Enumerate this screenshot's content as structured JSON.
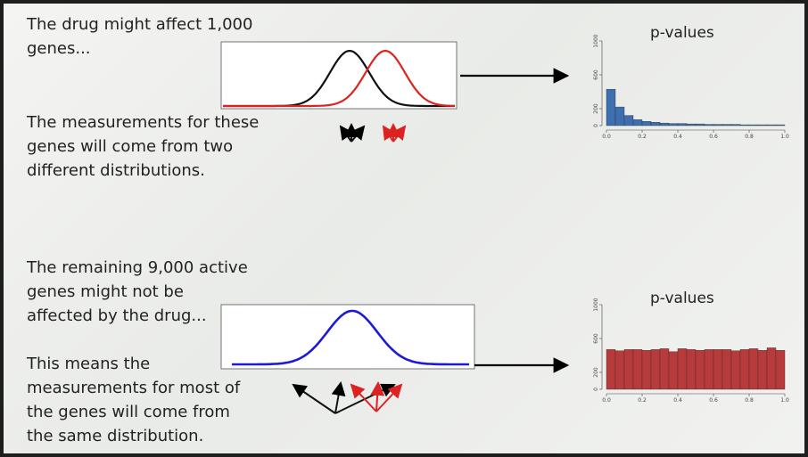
{
  "slide": {
    "text_top": "The drug might affect 1,000 genes...",
    "text_distributions": "The measurements for these genes will come from two different distributions.",
    "text_remaining": "The remaining 9,000 active genes might not be affected by the drug...",
    "text_same": "This means the measurements for most of the genes will come from the same distribution."
  },
  "histograms": [
    {
      "type": "histogram",
      "title": "p-values",
      "color": "#3d6fb0",
      "bins": [
        0,
        0.05,
        0.1,
        0.15,
        0.2,
        0.25,
        0.3,
        0.35,
        0.4,
        0.45,
        0.5,
        0.55,
        0.6,
        0.65,
        0.7,
        0.75,
        0.8,
        0.85,
        0.9,
        0.95,
        1
      ],
      "counts": [
        430,
        220,
        120,
        70,
        50,
        40,
        30,
        25,
        25,
        20,
        20,
        15,
        15,
        15,
        15,
        10,
        10,
        10,
        10,
        10
      ],
      "xlim": [
        0,
        1
      ],
      "ylim": [
        0,
        1000
      ],
      "xticks": [
        {
          "value": 0,
          "label": "0.0"
        },
        {
          "value": 0.2,
          "label": "0.2"
        },
        {
          "value": 0.4,
          "label": "0.4"
        },
        {
          "value": 0.6,
          "label": "0.6"
        },
        {
          "value": 0.8,
          "label": "0.8"
        },
        {
          "value": 1,
          "label": "1.0"
        }
      ],
      "yticks": [
        0,
        200,
        600,
        1000
      ]
    },
    {
      "type": "histogram",
      "title": "p-values",
      "color": "#b83a3a",
      "bins": [
        0,
        0.05,
        0.1,
        0.15,
        0.2,
        0.25,
        0.3,
        0.35,
        0.4,
        0.45,
        0.5,
        0.55,
        0.6,
        0.65,
        0.7,
        0.75,
        0.8,
        0.85,
        0.9,
        0.95,
        1
      ],
      "counts": [
        470,
        455,
        470,
        470,
        460,
        470,
        480,
        445,
        480,
        470,
        460,
        470,
        470,
        470,
        455,
        470,
        480,
        460,
        490,
        460
      ],
      "xlim": [
        0,
        1
      ],
      "ylim": [
        0,
        1000
      ],
      "xticks": [
        {
          "value": 0,
          "label": "0.0"
        },
        {
          "value": 0.2,
          "label": "0.2"
        },
        {
          "value": 0.4,
          "label": "0.4"
        },
        {
          "value": 0.6,
          "label": "0.6"
        },
        {
          "value": 0.8,
          "label": "0.8"
        },
        {
          "value": 1,
          "label": "1.0"
        }
      ],
      "yticks": [
        0,
        200,
        600,
        1000
      ]
    }
  ]
}
